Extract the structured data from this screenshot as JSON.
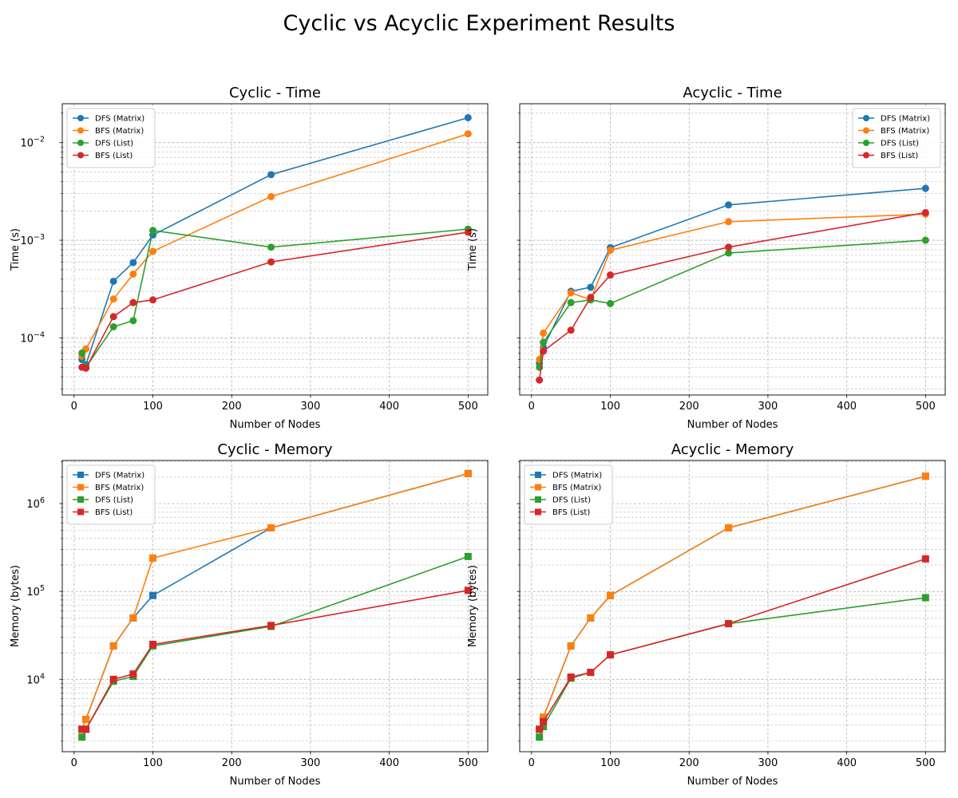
{
  "figure": {
    "title": "Cyclic vs Acyclic Experiment Results"
  },
  "colors": {
    "DFS (Matrix)": "#1f77b4",
    "BFS (Matrix)": "#ff7f0e",
    "DFS (List)": "#2ca02c",
    "BFS (List)": "#d62728"
  },
  "chart_data": [
    {
      "type": "line",
      "title": "Cyclic - Time",
      "xlabel": "Number of Nodes",
      "ylabel": "Time (s)",
      "yscale": "log",
      "marker": "circle",
      "xlim": [
        -15,
        525
      ],
      "ylim": [
        2.6e-05,
        0.025
      ],
      "xticks": [
        0,
        100,
        200,
        300,
        400,
        500
      ],
      "yticks": [
        0.0001,
        0.001,
        0.01
      ],
      "ytick_exponents": [
        "-4",
        "-3",
        "-2"
      ],
      "grid": true,
      "legend": "top-left",
      "x": [
        10,
        15,
        50,
        75,
        100,
        250,
        500
      ],
      "series": [
        {
          "name": "DFS (Matrix)",
          "values": [
            6e-05,
            5.3e-05,
            0.00038,
            0.00059,
            0.00113,
            0.0047,
            0.018
          ]
        },
        {
          "name": "BFS (Matrix)",
          "values": [
            6.5e-05,
            7.7e-05,
            0.00025,
            0.00045,
            0.00077,
            0.0028,
            0.0123
          ]
        },
        {
          "name": "DFS (List)",
          "values": [
            7e-05,
            5e-05,
            0.00013,
            0.00015,
            0.00126,
            0.00085,
            0.0013
          ]
        },
        {
          "name": "BFS (List)",
          "values": [
            5e-05,
            4.9e-05,
            0.000165,
            0.00023,
            0.000245,
            0.0006,
            0.00121
          ]
        }
      ]
    },
    {
      "type": "line",
      "title": "Acyclic - Time",
      "xlabel": "Number of Nodes",
      "ylabel": "Time (s)",
      "yscale": "log",
      "marker": "circle",
      "xlim": [
        -15,
        525
      ],
      "ylim": [
        2.6e-05,
        0.025
      ],
      "xticks": [
        0,
        100,
        200,
        300,
        400,
        500
      ],
      "yticks": [
        0.0001,
        0.001,
        0.01
      ],
      "ytick_exponents": [
        "-4",
        "-3",
        "-2"
      ],
      "grid": true,
      "legend": "top-right",
      "x": [
        10,
        15,
        50,
        75,
        100,
        250,
        500
      ],
      "series": [
        {
          "name": "DFS (Matrix)",
          "values": [
            5.5e-05,
            8e-05,
            0.0003,
            0.00033,
            0.00084,
            0.0023,
            0.0034
          ]
        },
        {
          "name": "BFS (Matrix)",
          "values": [
            6e-05,
            0.000112,
            0.00029,
            0.000245,
            0.00079,
            0.00155,
            0.00185
          ]
        },
        {
          "name": "DFS (List)",
          "values": [
            5e-05,
            9e-05,
            0.00023,
            0.000245,
            0.000225,
            0.00074,
            0.001
          ]
        },
        {
          "name": "BFS (List)",
          "values": [
            3.7e-05,
            7.3e-05,
            0.00012,
            0.00026,
            0.00044,
            0.00085,
            0.00192
          ]
        }
      ]
    },
    {
      "type": "line",
      "title": "Cyclic - Memory",
      "xlabel": "Number of Nodes",
      "ylabel": "Memory (bytes)",
      "yscale": "log",
      "marker": "square",
      "xlim": [
        -15,
        525
      ],
      "ylim": [
        1500,
        3100000
      ],
      "xticks": [
        0,
        100,
        200,
        300,
        400,
        500
      ],
      "yticks": [
        10000,
        100000,
        1000000
      ],
      "ytick_exponents": [
        "4",
        "5",
        "6"
      ],
      "grid": true,
      "legend": "top-left",
      "x": [
        10,
        15,
        50,
        75,
        100,
        250,
        500
      ],
      "series": [
        {
          "name": "DFS (Matrix)",
          "values": [
            2700,
            3500,
            24000,
            50000,
            90000,
            530000,
            2200000
          ]
        },
        {
          "name": "BFS (Matrix)",
          "values": [
            2700,
            3500,
            24000,
            50000,
            240000,
            530000,
            2200000
          ]
        },
        {
          "name": "DFS (List)",
          "values": [
            2200,
            2700,
            9500,
            10800,
            24000,
            40000,
            250000
          ]
        },
        {
          "name": "BFS (List)",
          "values": [
            2700,
            2700,
            10000,
            11500,
            25000,
            41000,
            103000
          ]
        }
      ]
    },
    {
      "type": "line",
      "title": "Acyclic - Memory",
      "xlabel": "Number of Nodes",
      "ylabel": "Memory (bytes)",
      "yscale": "log",
      "marker": "square",
      "xlim": [
        -15,
        525
      ],
      "ylim": [
        1500,
        3100000
      ],
      "xticks": [
        0,
        100,
        200,
        300,
        400,
        500
      ],
      "yticks": [
        10000,
        100000,
        1000000
      ],
      "ytick_exponents": [
        "4",
        "5",
        "6"
      ],
      "grid": true,
      "legend": "top-left",
      "x": [
        10,
        15,
        50,
        75,
        100,
        250,
        500
      ],
      "series": [
        {
          "name": "DFS (Matrix)",
          "values": [
            2700,
            3700,
            24000,
            50000,
            90000,
            530000,
            2050000
          ]
        },
        {
          "name": "BFS (Matrix)",
          "values": [
            2700,
            3700,
            24000,
            50000,
            90000,
            530000,
            2050000
          ]
        },
        {
          "name": "DFS (List)",
          "values": [
            2200,
            2900,
            10300,
            12000,
            19000,
            43000,
            85000
          ]
        },
        {
          "name": "BFS (List)",
          "values": [
            2700,
            3300,
            10600,
            12000,
            19000,
            43000,
            235000
          ]
        }
      ]
    }
  ]
}
